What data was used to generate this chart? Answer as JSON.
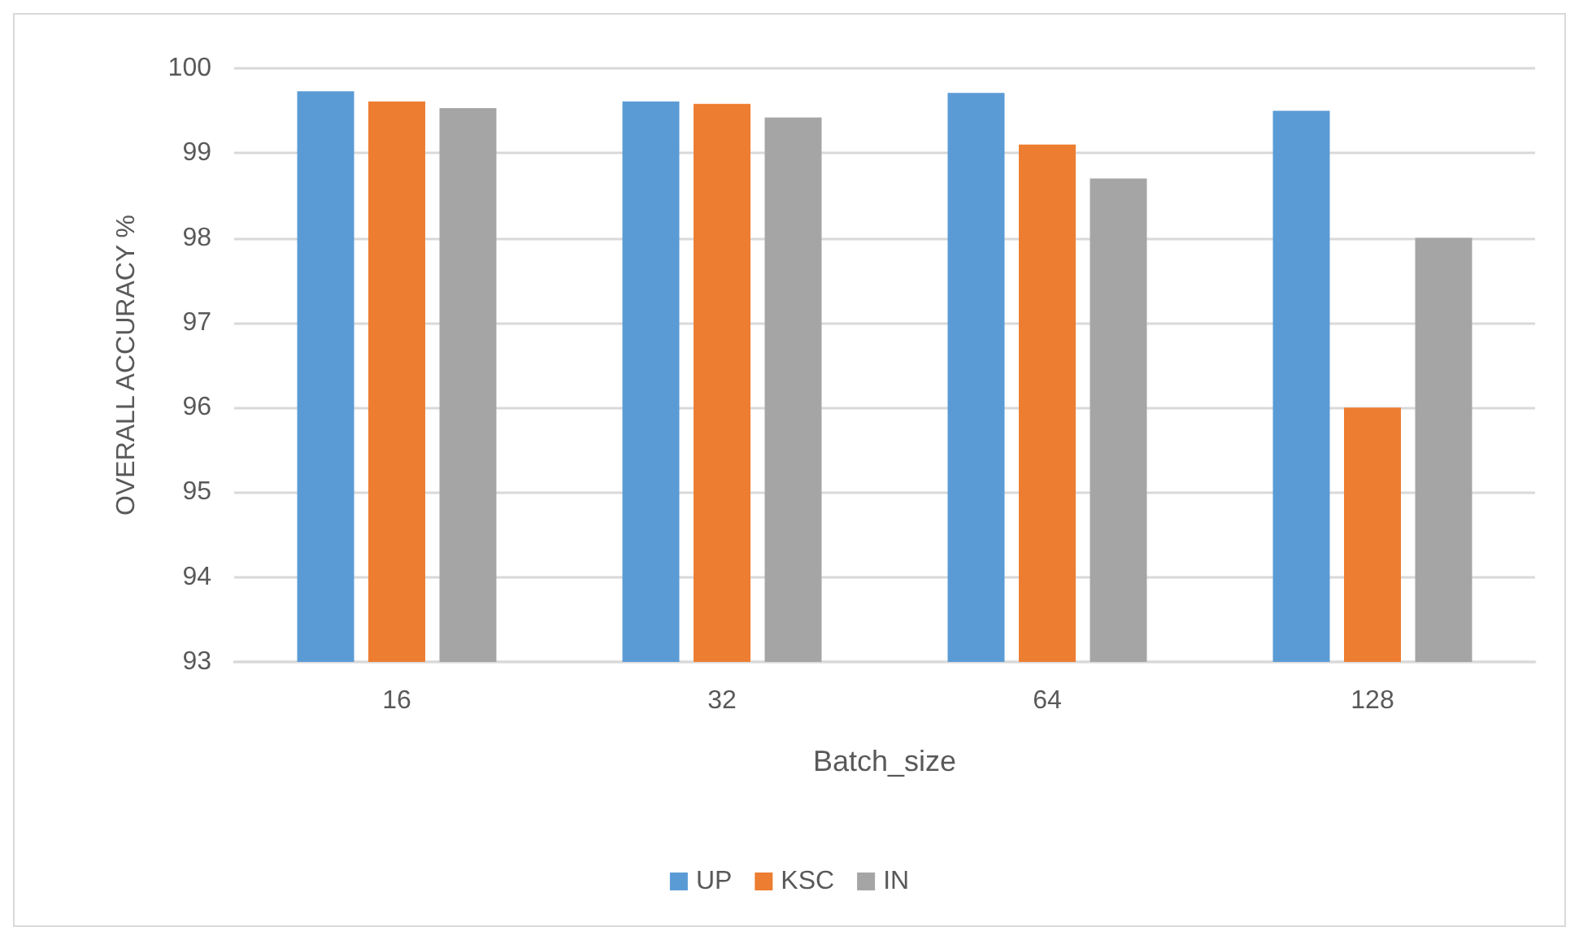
{
  "chart_data": {
    "type": "bar",
    "xlabel": "Batch_size",
    "ylabel": "OVERALL ACCURACY %",
    "categories": [
      "16",
      "32",
      "64",
      "128"
    ],
    "series": [
      {
        "name": "UP",
        "color": "#5b9bd5",
        "values": [
          99.73,
          99.61,
          99.71,
          99.5
        ]
      },
      {
        "name": "KSC",
        "color": "#ed7d31",
        "values": [
          99.61,
          99.58,
          99.1,
          96
        ]
      },
      {
        "name": "IN",
        "color": "#a5a5a5",
        "values": [
          99.53,
          99.42,
          98.7,
          98
        ]
      }
    ],
    "ylim": [
      93,
      100
    ],
    "yticks": [
      93,
      94,
      95,
      96,
      97,
      98,
      99,
      100
    ],
    "grid": "y",
    "legend": "bottom"
  }
}
